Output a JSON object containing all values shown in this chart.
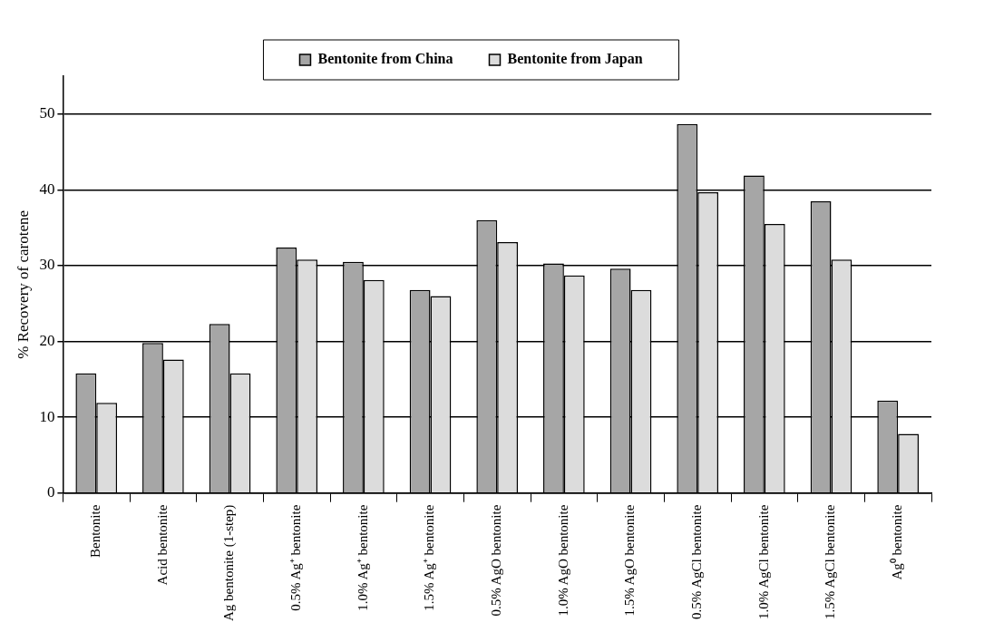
{
  "chart_data": {
    "type": "bar",
    "ylabel": "% Recovery of carotene",
    "categories": [
      "Bentonite",
      "Acid bentonite",
      "Ag bentonite (1-step)",
      "0.5% Ag⁺ bentonite",
      "1.0% Ag⁺ bentonite",
      "1.5% Ag⁺ bentonite",
      "0.5% AgO bentonite",
      "1.0% AgO bentonite",
      "1.5% AgO bentonite",
      "0.5% AgCl bentonite",
      "1.0% AgCl bentonite",
      "1.5% AgCl bentonite",
      "Ag⁰ bentonite"
    ],
    "series": [
      {
        "name": "Bentonite from China",
        "color": "#a6a6a6",
        "values": [
          15.8,
          19.8,
          22.3,
          32.4,
          30.5,
          26.8,
          36.0,
          30.3,
          29.6,
          48.7,
          41.9,
          38.5,
          12.2
        ]
      },
      {
        "name": "Bentonite from Japan",
        "color": "#dcdcdc",
        "values": [
          11.9,
          17.6,
          15.8,
          30.8,
          28.1,
          26.0,
          33.1,
          28.7,
          26.8,
          39.7,
          35.5,
          30.8,
          7.8
        ]
      }
    ],
    "ylim": [
      0,
      55
    ],
    "yticks": [
      0,
      10,
      20,
      30,
      40,
      50
    ],
    "grid": "y",
    "legend": "top"
  }
}
